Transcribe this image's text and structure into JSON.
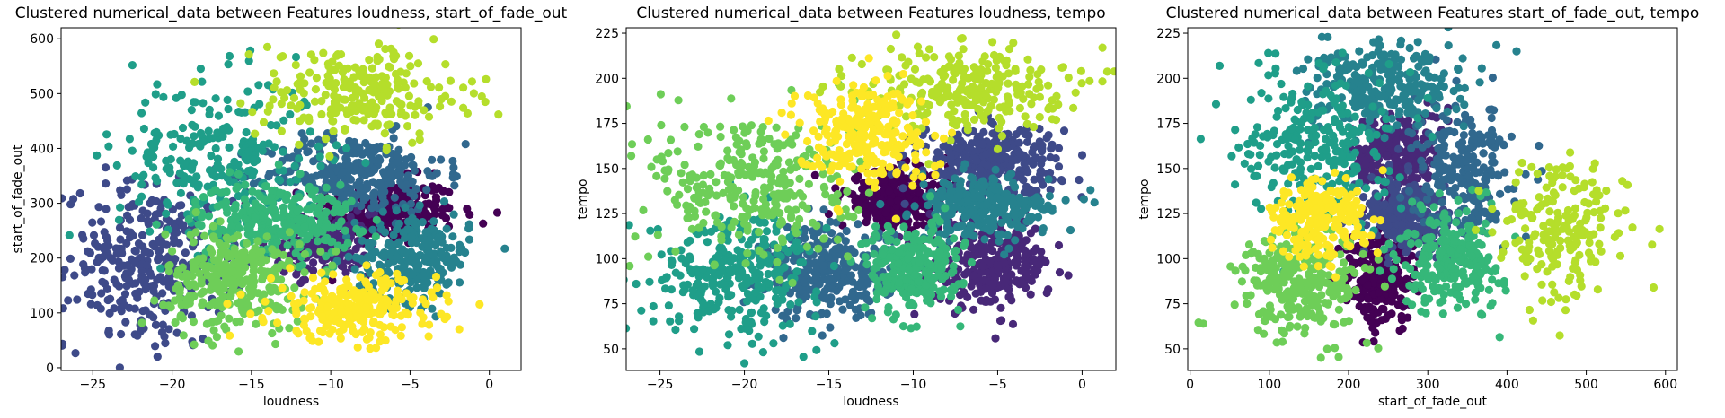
{
  "chart_data": [
    {
      "type": "scatter",
      "title": "Clustered numerical_data between Features loudness, start_of_fade_out",
      "xlabel": "loudness",
      "ylabel": "start_of_fade_out",
      "xlim": [
        -27,
        2
      ],
      "ylim": [
        -5,
        620
      ],
      "xticks": [
        -25,
        -20,
        -15,
        -10,
        -5,
        0
      ],
      "yticks": [
        0,
        100,
        200,
        300,
        400,
        500,
        600
      ],
      "grid": false,
      "clusters": [
        {
          "color": "#440154",
          "cx": -6.5,
          "cy": 285,
          "sx": 2.2,
          "sy": 30,
          "n": 260
        },
        {
          "color": "#482878",
          "cx": -10.5,
          "cy": 225,
          "sx": 1.5,
          "sy": 28,
          "n": 200
        },
        {
          "color": "#3e4a89",
          "cx": -21.5,
          "cy": 185,
          "sx": 2.6,
          "sy": 75,
          "n": 320
        },
        {
          "color": "#31688e",
          "cx": -8.5,
          "cy": 355,
          "sx": 2.8,
          "sy": 35,
          "n": 300
        },
        {
          "color": "#26828e",
          "cx": -4.8,
          "cy": 200,
          "sx": 1.8,
          "sy": 40,
          "n": 260
        },
        {
          "color": "#1f9e89",
          "cx": -17,
          "cy": 380,
          "sx": 3.2,
          "sy": 75,
          "n": 260
        },
        {
          "color": "#35b779",
          "cx": -13.5,
          "cy": 270,
          "sx": 2.5,
          "sy": 35,
          "n": 280
        },
        {
          "color": "#6ece58",
          "cx": -16,
          "cy": 160,
          "sx": 2.2,
          "sy": 45,
          "n": 300
        },
        {
          "color": "#b5de2b",
          "cx": -8,
          "cy": 500,
          "sx": 3.3,
          "sy": 45,
          "n": 240
        },
        {
          "color": "#fde725",
          "cx": -8.5,
          "cy": 110,
          "sx": 2.6,
          "sy": 30,
          "n": 260
        }
      ],
      "extra_points": [
        {
          "x": 0.5,
          "y": 283,
          "color": "#440154"
        },
        {
          "x": -1.5,
          "y": 408,
          "color": "#31688e"
        },
        {
          "x": -22.5,
          "y": 552,
          "color": "#1f9e89"
        },
        {
          "x": -14,
          "y": 585,
          "color": "#b5de2b"
        }
      ]
    },
    {
      "type": "scatter",
      "title": "Clustered numerical_data between Features loudness, tempo",
      "xlabel": "loudness",
      "ylabel": "tempo",
      "xlim": [
        -27,
        2
      ],
      "ylim": [
        38,
        228
      ],
      "xticks": [
        -25,
        -20,
        -15,
        -10,
        -5,
        0
      ],
      "yticks": [
        50,
        75,
        100,
        125,
        150,
        175,
        200,
        225
      ],
      "grid": false,
      "clusters": [
        {
          "color": "#440154",
          "cx": -11,
          "cy": 133,
          "sx": 1.6,
          "sy": 8,
          "n": 300
        },
        {
          "color": "#482878",
          "cx": -5.5,
          "cy": 97,
          "sx": 1.8,
          "sy": 12,
          "n": 300
        },
        {
          "color": "#3e4a89",
          "cx": -5.5,
          "cy": 155,
          "sx": 2.1,
          "sy": 10,
          "n": 300
        },
        {
          "color": "#31688e",
          "cx": -15,
          "cy": 92,
          "sx": 1.9,
          "sy": 13,
          "n": 300
        },
        {
          "color": "#26828e",
          "cx": -5.8,
          "cy": 128,
          "sx": 2.0,
          "sy": 9,
          "n": 260
        },
        {
          "color": "#1f9e89",
          "cx": -20.5,
          "cy": 93,
          "sx": 2.5,
          "sy": 16,
          "n": 300
        },
        {
          "color": "#35b779",
          "cx": -10,
          "cy": 95,
          "sx": 1.4,
          "sy": 12,
          "n": 260
        },
        {
          "color": "#6ece58",
          "cx": -19.5,
          "cy": 140,
          "sx": 3.0,
          "sy": 22,
          "n": 300
        },
        {
          "color": "#b5de2b",
          "cx": -7,
          "cy": 195,
          "sx": 3.0,
          "sy": 12,
          "n": 260
        },
        {
          "color": "#fde725",
          "cx": -13,
          "cy": 170,
          "sx": 2.0,
          "sy": 14,
          "n": 260
        }
      ],
      "extra_points": [
        {
          "x": 0.5,
          "y": 138,
          "color": "#26828e"
        },
        {
          "x": -20,
          "y": 42,
          "color": "#1f9e89"
        },
        {
          "x": -2,
          "y": 183,
          "color": "#b5de2b"
        }
      ]
    },
    {
      "type": "scatter",
      "title": "Clustered numerical_data between Features start_of_fade_out, tempo",
      "xlabel": "start_of_fade_out",
      "ylabel": "tempo",
      "xlim": [
        -3,
        615
      ],
      "ylim": [
        38,
        228
      ],
      "xticks": [
        0,
        100,
        200,
        300,
        400,
        500,
        600
      ],
      "yticks": [
        50,
        75,
        100,
        125,
        150,
        175,
        200,
        225
      ],
      "grid": false,
      "clusters": [
        {
          "color": "#440154",
          "cx": 242,
          "cy": 90,
          "sx": 22,
          "sy": 13,
          "n": 260
        },
        {
          "color": "#482878",
          "cx": 260,
          "cy": 158,
          "sx": 28,
          "sy": 12,
          "n": 260
        },
        {
          "color": "#3e4a89",
          "cx": 275,
          "cy": 123,
          "sx": 28,
          "sy": 10,
          "n": 260
        },
        {
          "color": "#31688e",
          "cx": 345,
          "cy": 150,
          "sx": 30,
          "sy": 18,
          "n": 240
        },
        {
          "color": "#26828e",
          "cx": 245,
          "cy": 195,
          "sx": 50,
          "sy": 12,
          "n": 280
        },
        {
          "color": "#1f9e89",
          "cx": 160,
          "cy": 165,
          "sx": 45,
          "sy": 22,
          "n": 260
        },
        {
          "color": "#35b779",
          "cx": 330,
          "cy": 100,
          "sx": 32,
          "sy": 14,
          "n": 260
        },
        {
          "color": "#6ece58",
          "cx": 140,
          "cy": 88,
          "sx": 40,
          "sy": 15,
          "n": 280
        },
        {
          "color": "#b5de2b",
          "cx": 470,
          "cy": 115,
          "sx": 40,
          "sy": 20,
          "n": 200
        },
        {
          "color": "#fde725",
          "cx": 160,
          "cy": 122,
          "sx": 30,
          "sy": 11,
          "n": 240
        }
      ],
      "extra_points": [
        {
          "x": 412,
          "y": 215,
          "color": "#26828e"
        },
        {
          "x": 585,
          "y": 84,
          "color": "#b5de2b"
        },
        {
          "x": 165,
          "y": 45,
          "color": "#6ece58"
        }
      ]
    }
  ]
}
